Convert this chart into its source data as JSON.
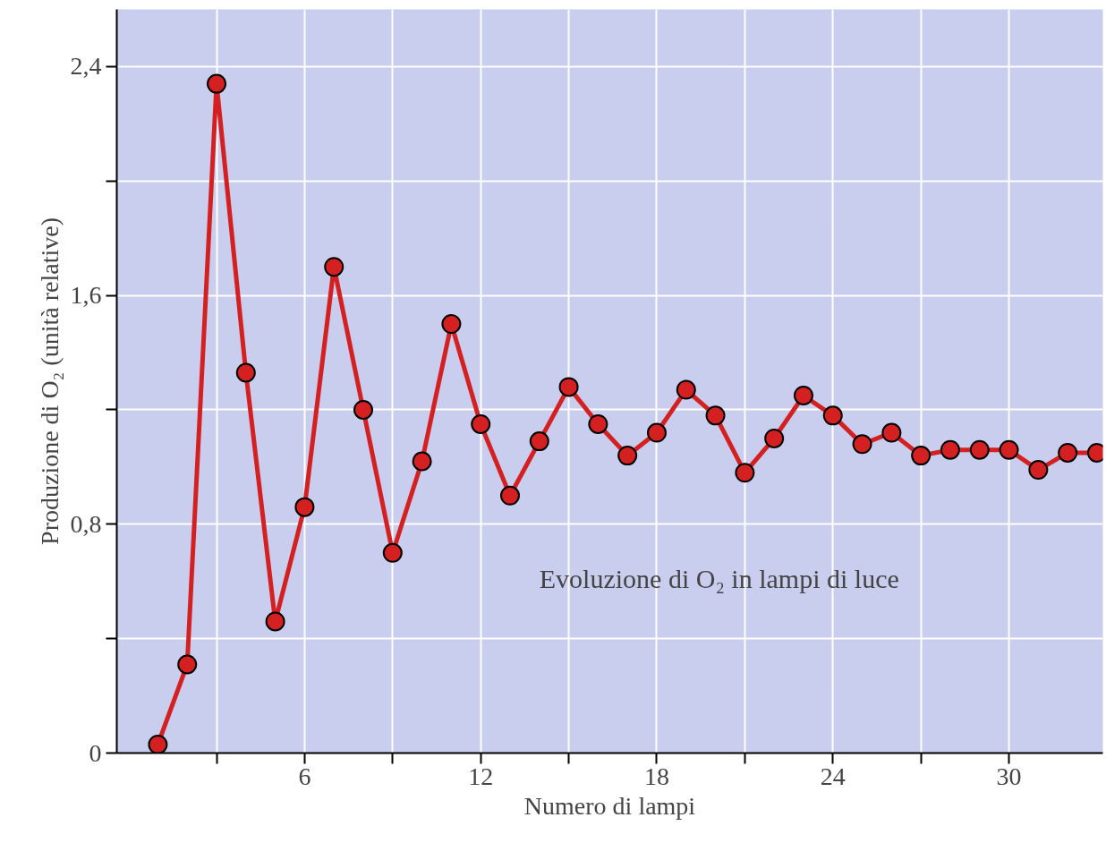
{
  "chart_data": {
    "type": "line",
    "xlabel": "Numero di lampi",
    "ylabel": "Produzione di O₂ (unità relative)",
    "annotations": [
      "Evoluzione di O₂ in lampi di luce"
    ],
    "x": [
      1,
      2,
      3,
      4,
      5,
      6,
      7,
      8,
      9,
      10,
      11,
      12,
      13,
      14,
      15,
      16,
      17,
      18,
      19,
      20,
      21,
      22,
      23,
      24,
      25,
      26,
      27,
      28,
      29,
      30,
      31,
      32,
      33
    ],
    "series": [
      {
        "color": "#d42020",
        "values": [
          0.03,
          0.31,
          2.34,
          1.33,
          0.46,
          0.86,
          1.7,
          1.2,
          0.7,
          1.02,
          1.5,
          1.15,
          0.9,
          1.09,
          1.28,
          1.15,
          1.04,
          1.12,
          1.27,
          1.18,
          0.98,
          1.1,
          1.25,
          1.18,
          1.08,
          1.12,
          1.04,
          1.06,
          1.06,
          1.06,
          0.99,
          1.05,
          1.05
        ]
      }
    ],
    "xlim": [
      -0.4,
      33.2
    ],
    "ylim": [
      0,
      2.6
    ],
    "xticks": [
      {
        "value": 3,
        "label": null
      },
      6,
      {
        "value": 9,
        "label": null
      },
      12,
      {
        "value": 15,
        "label": null
      },
      18,
      {
        "value": 21,
        "label": null
      },
      24,
      {
        "value": 27,
        "label": null
      },
      30
    ],
    "yticks": [
      0,
      {
        "value": 0.4,
        "label": null
      },
      {
        "value": 0.8,
        "label": "0,8"
      },
      {
        "value": 1.2,
        "label": null
      },
      {
        "value": 1.6,
        "label": "1,6"
      },
      {
        "value": 2.0,
        "label": null
      },
      {
        "value": 2.4,
        "label": "2,4"
      }
    ],
    "grid": true,
    "marker": "circle",
    "line_style": "solid"
  }
}
